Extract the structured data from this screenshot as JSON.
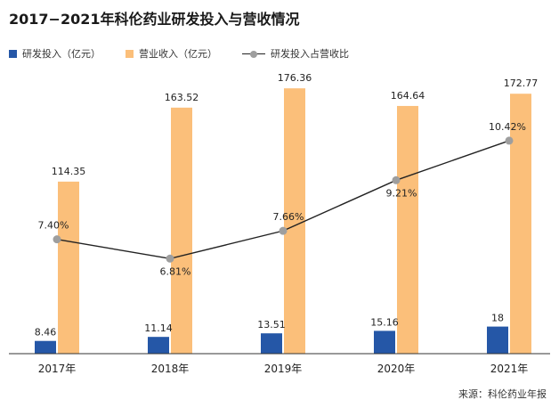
{
  "title": "2017−2021年科伦药业研发投入与营收情况",
  "legend": {
    "rd": "研发投入（亿元）",
    "revenue": "营业收入（亿元）",
    "ratio": "研发投入占营收比"
  },
  "source": "来源：科伦药业年报",
  "colors": {
    "rd": "#2557a7",
    "revenue": "#fbbf7a",
    "line": "#222222",
    "marker": "#9e9e9e"
  },
  "chart_data": {
    "type": "bar",
    "categories": [
      "2017年",
      "2018年",
      "2019年",
      "2020年",
      "2021年"
    ],
    "series": [
      {
        "name": "研发投入（亿元）",
        "values": [
          8.46,
          11.14,
          13.51,
          15.16,
          18
        ],
        "labels": [
          "8.46",
          "11.14",
          "13.51",
          "15.16",
          "18"
        ]
      },
      {
        "name": "营业收入（亿元）",
        "values": [
          114.35,
          163.52,
          176.36,
          164.64,
          172.77
        ],
        "labels": [
          "114.35",
          "163.52",
          "176.36",
          "164.64",
          "172.77"
        ]
      },
      {
        "name": "研发投入占营收比",
        "type": "line",
        "values": [
          7.4,
          6.81,
          7.66,
          9.21,
          10.42
        ],
        "labels": [
          "7.40%",
          "6.81%",
          "7.66%",
          "9.21%",
          "10.42%"
        ]
      }
    ],
    "ylim": [
      0,
      180
    ],
    "ratio_ylim": [
      0,
      12
    ],
    "grid": false,
    "legend_position": "top-left"
  }
}
